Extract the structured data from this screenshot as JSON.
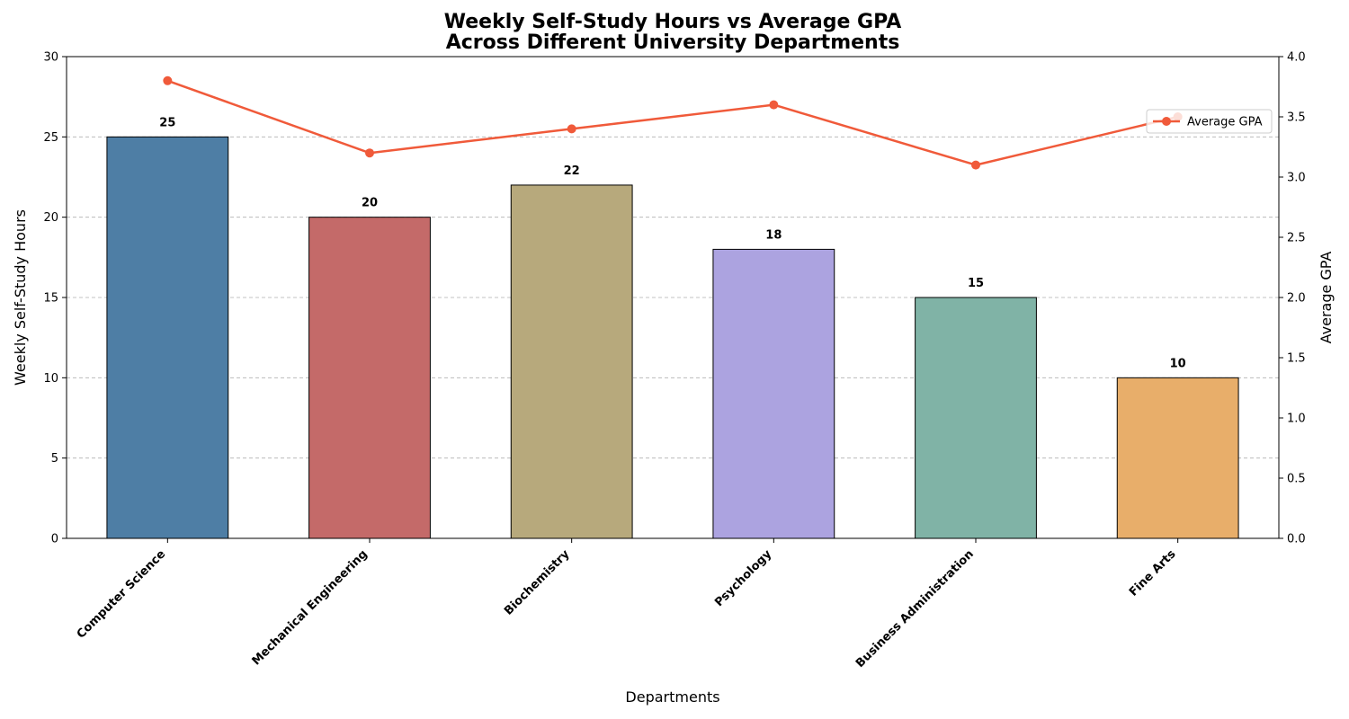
{
  "chart_data": {
    "type": "bar",
    "title_lines": [
      "Weekly Self-Study Hours vs Average GPA",
      "Across Different University Departments"
    ],
    "xlabel": "Departments",
    "ylabel": "Weekly Self-Study Hours",
    "y2label": "Average GPA",
    "categories": [
      "Computer Science",
      "Mechanical Engineering",
      "Biochemistry",
      "Psychology",
      "Business Administration",
      "Fine Arts"
    ],
    "series": [
      {
        "name": "",
        "kind": "bar",
        "axis": "left",
        "values": [
          25,
          20,
          22,
          18,
          15,
          10
        ],
        "colors": [
          "#4e7ea5",
          "#c46a69",
          "#b7a97c",
          "#aca3e0",
          "#80b3a6",
          "#e8ae6a"
        ]
      },
      {
        "name": "Average GPA",
        "kind": "line",
        "axis": "right",
        "values": [
          3.8,
          3.2,
          3.4,
          3.6,
          3.1,
          3.5
        ],
        "color": "#f05a3a"
      }
    ],
    "ylim": [
      0,
      30
    ],
    "y2lim": [
      0,
      4.0
    ],
    "yticks": [
      "0",
      "5",
      "10",
      "15",
      "20",
      "25",
      "30"
    ],
    "y2ticks": [
      "0.0",
      "0.5",
      "1.0",
      "1.5",
      "2.0",
      "2.5",
      "3.0",
      "3.5",
      "4.0"
    ],
    "grid": "horizontal dashed",
    "legend_position": "upper-right"
  }
}
